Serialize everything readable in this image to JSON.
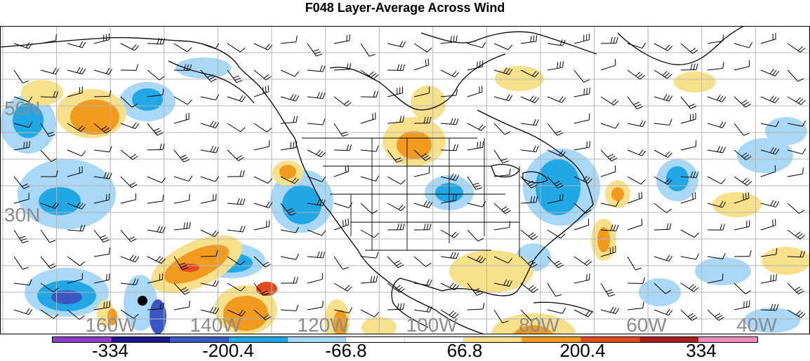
{
  "title": "F048 Layer-Average Across Wind",
  "map": {
    "lat_labels": [
      "50N",
      "30N"
    ],
    "lon_labels": [
      "160W",
      "140W",
      "120W",
      "100W",
      "80W",
      "60W",
      "40W"
    ],
    "label_color": "#8c8c8c",
    "grid_color": "#b4b4b4",
    "coast_color": "#000000",
    "marker": "black-dot"
  },
  "colorbar": {
    "colors": [
      "#8a3fc6",
      "#1a1a8c",
      "#3a57c4",
      "#20a8e6",
      "#a8d8f5",
      "#ffffff",
      "#ffffff",
      "#f7e08a",
      "#f29a1e",
      "#e34a1e",
      "#a81e1e",
      "#f58cbf"
    ],
    "labels": [
      "-334",
      "-200.4",
      "-66.8",
      "66.8",
      "200.4",
      "334"
    ]
  }
}
